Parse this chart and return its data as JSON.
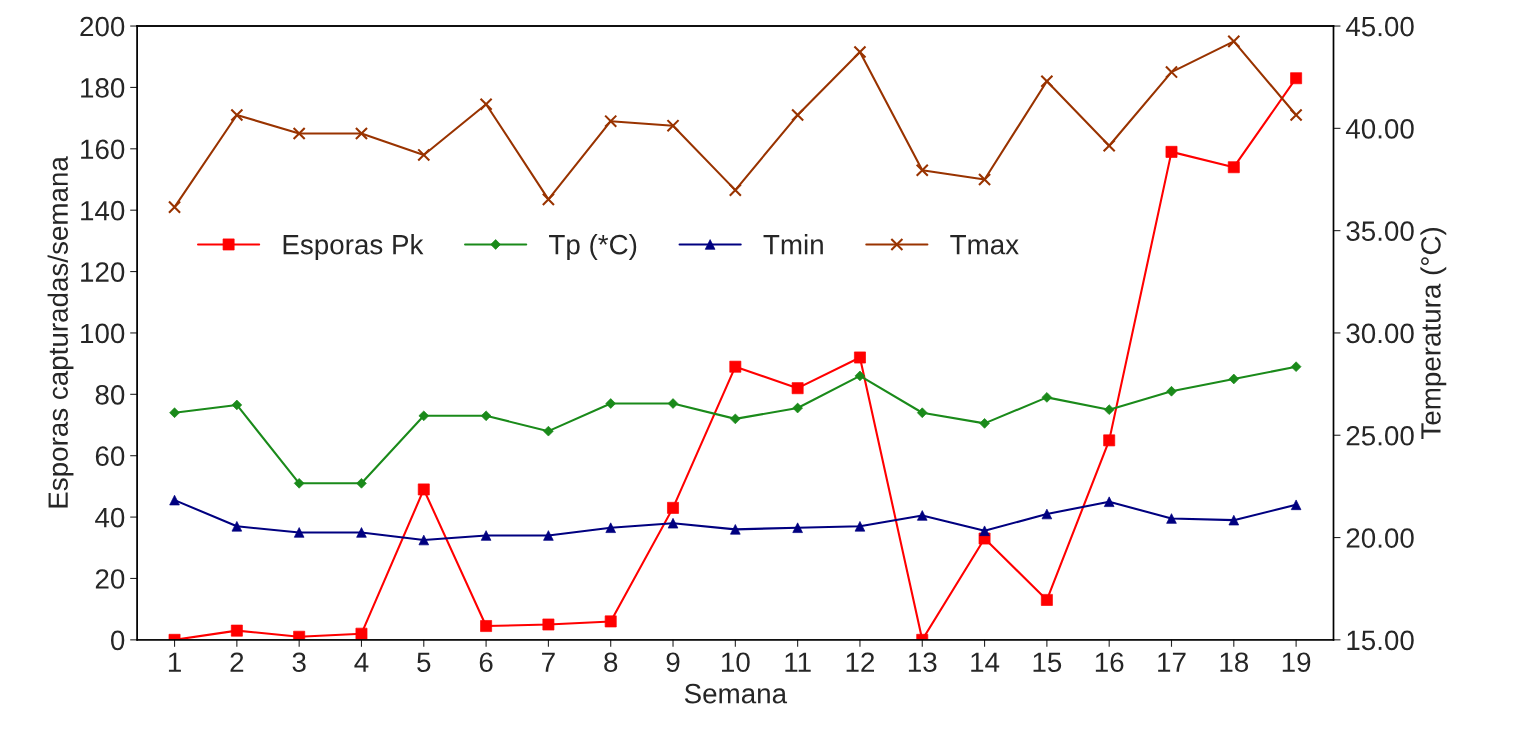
{
  "chart_data": {
    "type": "line",
    "xlabel": "Semana",
    "ylabel": "Esporas capturadas/semana",
    "y2label": "Temperatura (°C)",
    "categories": [
      "1",
      "2",
      "3",
      "4",
      "5",
      "6",
      "7",
      "8",
      "9",
      "10",
      "11",
      "12",
      "13",
      "14",
      "15",
      "16",
      "17",
      "18",
      "19"
    ],
    "series": [
      {
        "name": "Esporas Pk",
        "color": "#ff0000",
        "marker": "square",
        "values": [
          0,
          3,
          1,
          2,
          49,
          4.5,
          5,
          6,
          43,
          89,
          82,
          92,
          0,
          33,
          13,
          65,
          159,
          154,
          183
        ]
      },
      {
        "name": "Tp (*C)",
        "color": "#1a8a1a",
        "marker": "diamond",
        "axis": "y2",
        "values": [
          26.1,
          26.48,
          22.65,
          22.65,
          25.95,
          25.95,
          25.2,
          26.55,
          26.55,
          25.8,
          26.33,
          27.9,
          26.1,
          25.58,
          26.85,
          26.25,
          27.15,
          27.75,
          28.35
        ]
      },
      {
        "name": "Tmin",
        "color": "#000080",
        "marker": "triangle",
        "axis": "y2",
        "values": [
          21.83,
          20.55,
          20.25,
          20.25,
          19.88,
          20.1,
          20.1,
          20.48,
          20.7,
          20.4,
          20.48,
          20.55,
          21.08,
          20.33,
          21.15,
          21.75,
          20.93,
          20.85,
          21.6
        ]
      },
      {
        "name": "Tmax",
        "color": "#993300",
        "marker": "cross",
        "axis": "y2",
        "values": [
          36.15,
          40.65,
          39.75,
          39.75,
          38.7,
          41.18,
          36.53,
          40.35,
          40.13,
          36.98,
          40.65,
          43.73,
          37.95,
          37.5,
          42.3,
          39.15,
          42.75,
          44.25,
          40.65
        ]
      }
    ],
    "ylim": [
      0,
      200
    ],
    "yticks": [
      0,
      20,
      40,
      60,
      80,
      100,
      120,
      140,
      160,
      180,
      200
    ],
    "y2lim": [
      15,
      45
    ],
    "y2ticks": [
      {
        "value": 15,
        "label": "15.00"
      },
      {
        "value": 20,
        "label": "20.00"
      },
      {
        "value": 25,
        "label": "25.00"
      },
      {
        "value": 30,
        "label": "30.00"
      },
      {
        "value": 35,
        "label": "35.00"
      },
      {
        "value": 40,
        "label": "40.00"
      },
      {
        "value": 45,
        "label": "45.00"
      }
    ],
    "legend": "left",
    "grid": false
  }
}
